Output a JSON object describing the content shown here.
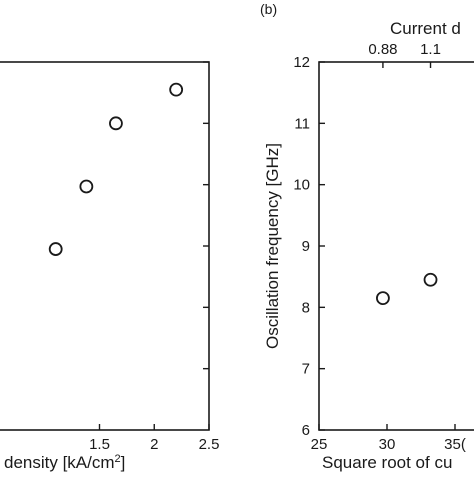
{
  "chart_data": [
    {
      "type": "scatter",
      "panel_label": "",
      "xlabel_pre": "density [kA/cm",
      "xlabel_sup": "2",
      "xlabel_post": "]",
      "ylabel": "",
      "xlim": [
        0.5,
        2.5
      ],
      "ylim": [
        6,
        12
      ],
      "x_ticks": [
        1.5,
        2,
        2.5
      ],
      "x_tick_labels": [
        "1.5",
        "2",
        "2.5"
      ],
      "y_ticks": [
        7,
        8,
        9,
        10,
        11,
        12
      ],
      "points": [
        {
          "x": 1.1,
          "y": 8.95
        },
        {
          "x": 1.38,
          "y": 9.97
        },
        {
          "x": 1.65,
          "y": 11.0
        },
        {
          "x": 2.2,
          "y": 11.55
        }
      ],
      "grid": false
    },
    {
      "type": "scatter",
      "panel_label": "(b)",
      "xlabel": "Square root of cu",
      "ylabel": "Oscillation frequency [GHz]",
      "top_xlabel": "Current d",
      "xlim": [
        25,
        37.5
      ],
      "ylim": [
        6,
        12
      ],
      "x_ticks": [
        25,
        30,
        35
      ],
      "x_tick_labels": [
        "25",
        "30",
        "35("
      ],
      "y_ticks": [
        6,
        7,
        8,
        9,
        10,
        11,
        12
      ],
      "y_tick_labels": [
        "6",
        "7",
        "8",
        "9",
        "10",
        "11",
        "12"
      ],
      "top_x_ticks": [
        29.7,
        33.2
      ],
      "top_x_tick_labels": [
        "0.88",
        "1.1"
      ],
      "points": [
        {
          "x": 29.7,
          "y": 8.15
        },
        {
          "x": 33.2,
          "y": 8.45
        }
      ],
      "grid": false
    }
  ]
}
